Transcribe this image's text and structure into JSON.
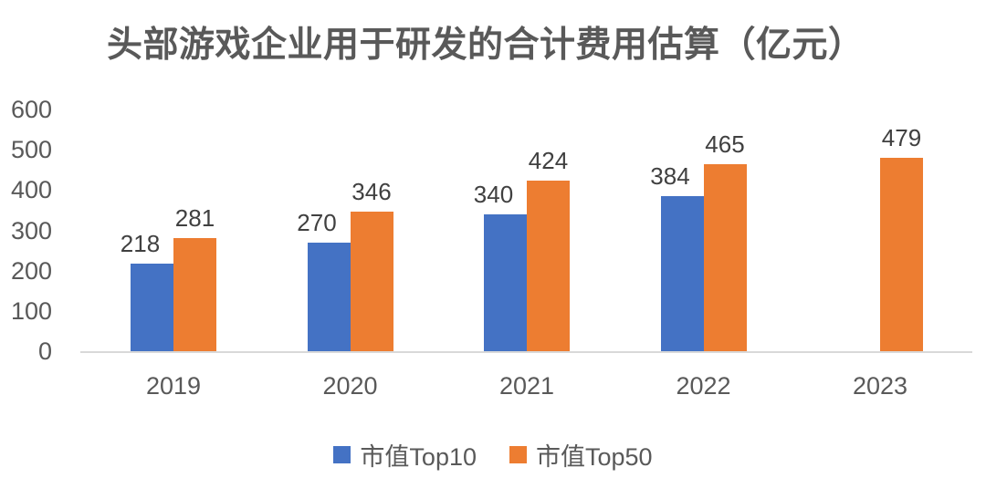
{
  "title": "头部游戏企业用于研发的合计费用估算（亿元）",
  "chart_data": {
    "type": "bar",
    "title": "头部游戏企业用于研发的合计费用估算（亿元）",
    "categories": [
      "2019",
      "2020",
      "2021",
      "2022",
      "2023"
    ],
    "series": [
      {
        "name": "市值Top10",
        "color": "#4472C4",
        "values": [
          218,
          270,
          340,
          384,
          null
        ]
      },
      {
        "name": "市值Top50",
        "color": "#ED7D31",
        "values": [
          281,
          346,
          424,
          465,
          479
        ]
      }
    ],
    "xlabel": "",
    "ylabel": "",
    "ylim": [
      0,
      600
    ],
    "yticks": [
      0,
      100,
      200,
      300,
      400,
      500,
      600
    ],
    "grid": false,
    "data_labels": true,
    "legend_position": "bottom"
  },
  "colors": {
    "series_top10": "#4472C4",
    "series_top50": "#ED7D31",
    "axis_line": "#d9d9d9",
    "title_text": "#595959",
    "tick_text": "#595959",
    "data_label_text": "#404040"
  }
}
